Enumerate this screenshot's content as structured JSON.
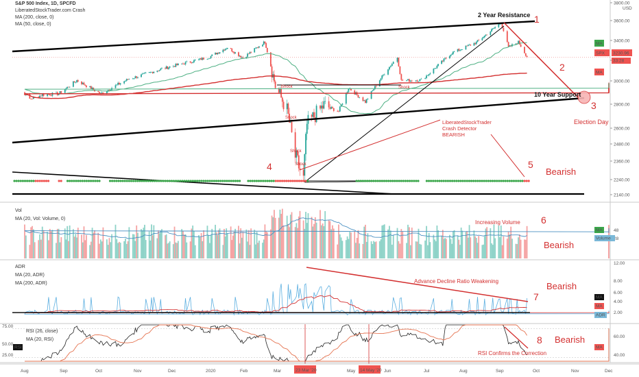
{
  "header": {
    "symbol_line": "S&P 500 Index, 1D, SPCFD",
    "indicator_1": "LiberatedStockTrader.com Crash",
    "indicator_2": "MA (200, close, 0)",
    "indicator_3": "MA (50, close, 0)"
  },
  "price_axis": {
    "currency": "USD",
    "ticks": [
      "3800.00",
      "3600.00",
      "3400.00",
      "3200.00",
      "3000.00",
      "2800.00",
      "2600.00",
      "2480.00",
      "2360.00",
      "2240.00",
      "2140.00"
    ],
    "spx_tag": "SPX",
    "spx_value": "3230.96",
    "spx_time": "33:28",
    "ma_tag": "MA"
  },
  "volume_pane": {
    "title": "Vol",
    "subtitle": "MA (20, Vol: Volume, 0)",
    "ticks": [
      "48",
      "28"
    ],
    "tag_ma": "MA",
    "tag_vol": "Volume"
  },
  "adr_pane": {
    "title": "ADR",
    "subtitle_1": "MA (20, ADR)",
    "subtitle_2": "MA (200, ADR)",
    "ticks": [
      "12.00",
      "8.00",
      "6.00",
      "4.00",
      "2.00"
    ],
    "tags": [
      "MA",
      "MA",
      "ADR"
    ]
  },
  "rsi_pane": {
    "title": "RSI (26, close)",
    "subtitle": "MA (20, RSI)",
    "left_ticks": [
      "75.00",
      "50.00",
      "25.00"
    ],
    "right_ticks": [
      "60.00",
      "40.00"
    ],
    "rsi_tag": "RSI",
    "ma_tag": "MA"
  },
  "time_axis": {
    "labels": [
      "Aug",
      "Sep",
      "Oct",
      "Nov",
      "Dec",
      "2020",
      "Feb",
      "Mar",
      "Apr",
      "May",
      "Jun",
      "Jul",
      "Aug",
      "Sep",
      "Oct",
      "Nov",
      "Dec"
    ],
    "highlight_1": "23 Mar '20",
    "highlight_2": "14 May '20"
  },
  "annotations": {
    "resistance": "2 Year Resistance",
    "support": "10 Year Support",
    "election": "Election Day",
    "crash_detector": [
      "LiberatedStockTrader",
      "Crash Detector",
      "BEARISH"
    ],
    "shock": "Shock",
    "bearish": "Bearish",
    "increasing_volume": "Increasing Volume",
    "adr_weakening": "Advance Decline Ratio Weakening",
    "rsi_confirms": "RSI Confirms the Correction",
    "numbers": [
      "1",
      "2",
      "3",
      "4",
      "5",
      "6",
      "7",
      "8"
    ]
  },
  "colors": {
    "up": "#26a69a",
    "down": "#ef5350",
    "ma200": "#d32f2f",
    "ma50": "#4caf82",
    "annotation": "#d32f2f",
    "adr_line": "#5aaee0",
    "rsi_ma": "#e57350"
  },
  "chart_data": {
    "type": "candlestick",
    "title": "S&P 500 Index, 1D, SPCFD",
    "x_range": [
      "2019-08",
      "2020-12"
    ],
    "ylim": [
      2140,
      3800
    ],
    "key_points": [
      {
        "date": "2019-08",
        "close": 2900
      },
      {
        "date": "2019-10",
        "close": 2940
      },
      {
        "date": "2019-12",
        "close": 3180
      },
      {
        "date": "2020-02-19",
        "close": 3386
      },
      {
        "date": "2020-03-23",
        "close": 2237
      },
      {
        "date": "2020-06-08",
        "close": 3232
      },
      {
        "date": "2020-06-11",
        "close": 3002
      },
      {
        "date": "2020-09-02",
        "close": 3580
      },
      {
        "date": "2020-09-23",
        "close": 3237
      }
    ],
    "last_close": 3230.96,
    "rsi_ylim": [
      25,
      75
    ]
  }
}
